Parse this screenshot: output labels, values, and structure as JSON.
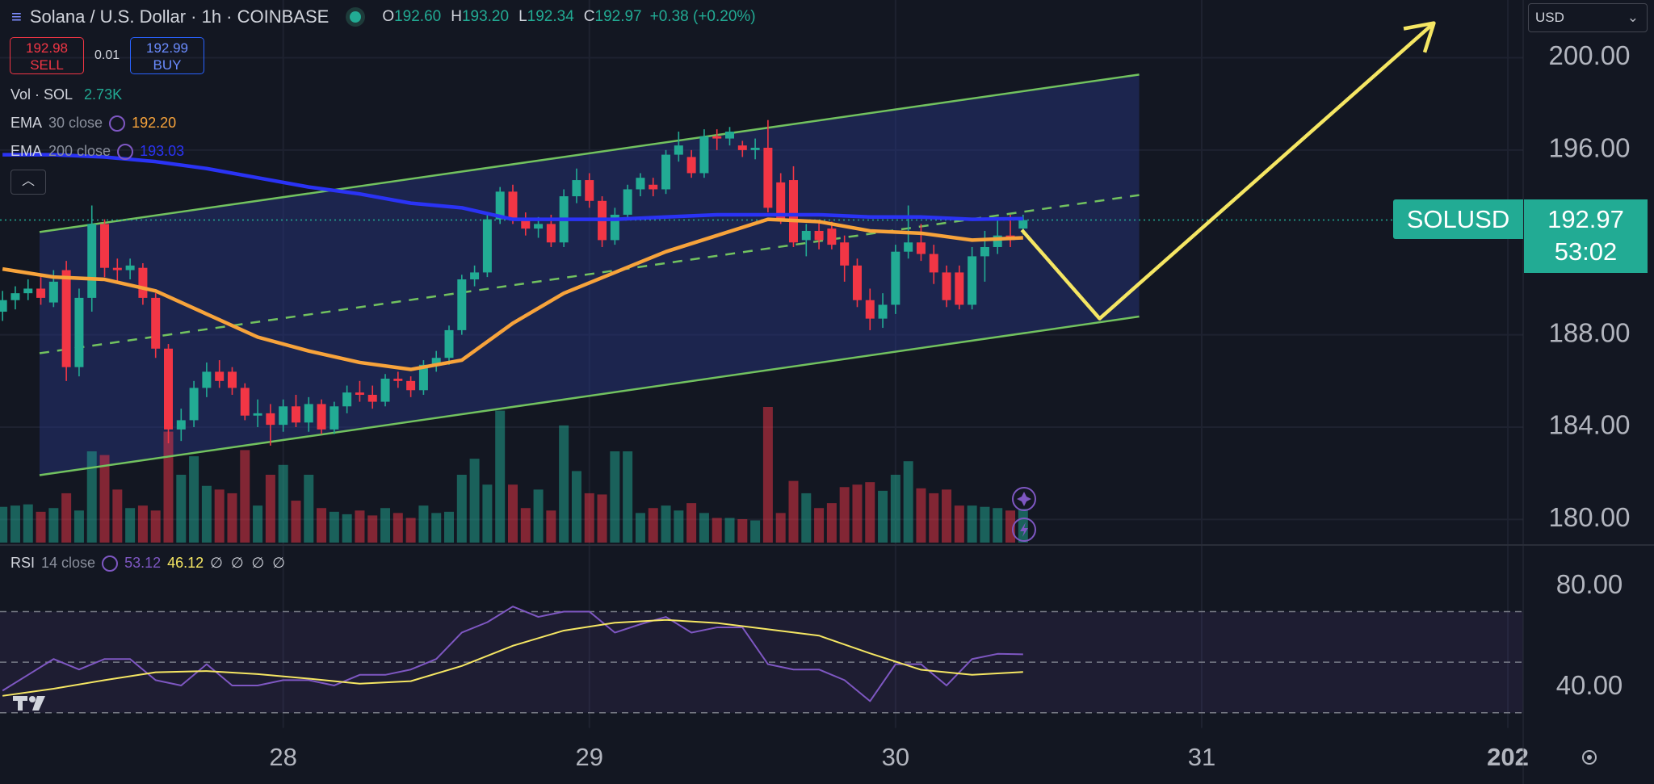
{
  "ui": {
    "header": {
      "title": "Solana / U.S. Dollar · 1h · COINBASE",
      "ohlc": [
        {
          "k": "O",
          "v": "192.60"
        },
        {
          "k": "H",
          "v": "193.20"
        },
        {
          "k": "L",
          "v": "192.34"
        },
        {
          "k": "C",
          "v": "192.97"
        }
      ],
      "change": "+0.38 (+0.20%)"
    },
    "trade": {
      "sell_price": "192.98",
      "sell": "SELL",
      "spread": "0.01",
      "buy_price": "192.99",
      "buy": "BUY"
    },
    "currency": "USD",
    "volume_legend": {
      "name": "Vol · SOL",
      "value": "2.73K"
    },
    "symbol_label": "SOLUSD",
    "countdown": "53:02"
  },
  "chart_data": [
    {
      "type": "candlestick",
      "title": "Solana / U.S. Dollar · 1h · COINBASE",
      "colors": {
        "up": "#22ab94",
        "down": "#f23645"
      },
      "x": [
        -22,
        -21,
        -20,
        -19,
        -18,
        -17,
        -16,
        -15,
        -14,
        -13,
        -12,
        -11,
        -10,
        -9,
        -8,
        -7,
        -6,
        -5,
        -4,
        -3,
        -2,
        -1,
        0,
        1,
        2,
        3,
        4,
        5,
        6,
        7,
        8,
        9,
        10,
        11,
        12,
        13,
        14,
        15,
        16,
        17,
        18,
        19,
        20,
        21,
        22,
        23,
        24,
        25,
        26,
        27,
        28,
        29,
        30,
        31,
        32,
        33,
        34,
        35,
        36,
        37,
        38,
        39,
        40,
        41,
        42,
        43,
        44,
        45,
        46,
        47,
        48,
        49,
        50,
        51,
        52,
        53,
        54,
        55,
        56,
        57,
        58
      ],
      "open": [
        189.0,
        189.5,
        189.8,
        190.0,
        189.4,
        190.8,
        186.6,
        189.6,
        192.8,
        190.9,
        190.8,
        190.9,
        189.6,
        187.4,
        183.9,
        184.3,
        185.7,
        186.4,
        186.4,
        185.7,
        184.5,
        184.6,
        184.1,
        184.9,
        184.2,
        185.0,
        183.9,
        184.9,
        185.5,
        185.4,
        185.1,
        186.1,
        186.0,
        185.6,
        186.7,
        187.0,
        188.2,
        190.4,
        190.7,
        193.0,
        194.2,
        193.0,
        192.6,
        192.8,
        192.0,
        194.0,
        194.7,
        193.8,
        192.1,
        193.2,
        194.3,
        194.5,
        194.3,
        195.8,
        195.7,
        195.0,
        196.6,
        196.5,
        196.2,
        196.0,
        196.1,
        194.6,
        194.7,
        192.1,
        192.5,
        192.6,
        192.0,
        191.0,
        189.5,
        188.7,
        189.3,
        191.6,
        192.0,
        191.5,
        190.7,
        190.7,
        189.3,
        191.4,
        191.8,
        192.3,
        192.6
      ],
      "high": [
        189.9,
        190.1,
        190.4,
        190.5,
        190.8,
        191.2,
        190.0,
        193.6,
        193.0,
        191.3,
        191.3,
        191.1,
        189.8,
        187.6,
        184.8,
        186.0,
        186.8,
        186.9,
        186.6,
        185.9,
        185.2,
        185.0,
        185.2,
        185.4,
        185.3,
        185.2,
        185.1,
        185.8,
        186.0,
        185.8,
        186.3,
        186.4,
        186.2,
        186.9,
        187.3,
        188.4,
        190.6,
        191.0,
        193.2,
        194.4,
        194.5,
        193.3,
        193.1,
        193.2,
        194.3,
        195.2,
        195.0,
        194.0,
        193.5,
        194.5,
        195.0,
        194.8,
        196.0,
        196.8,
        196.0,
        196.9,
        196.9,
        197.0,
        196.4,
        196.5,
        197.3,
        195.0,
        195.3,
        192.8,
        192.9,
        192.9,
        192.3,
        191.3,
        190.0,
        189.8,
        191.9,
        193.6,
        192.8,
        191.9,
        191.0,
        191.0,
        191.8,
        192.5,
        193.0,
        193.2,
        193.2
      ],
      "low": [
        188.6,
        189.1,
        189.5,
        189.3,
        189.2,
        186.0,
        186.2,
        189.0,
        190.5,
        190.3,
        190.4,
        189.3,
        187.0,
        183.3,
        183.4,
        184.0,
        185.3,
        185.7,
        185.4,
        184.3,
        184.0,
        183.2,
        183.8,
        184.0,
        183.8,
        183.7,
        183.7,
        184.6,
        185.1,
        184.8,
        184.9,
        185.7,
        185.3,
        185.4,
        186.4,
        186.7,
        188.0,
        190.1,
        190.5,
        192.8,
        192.8,
        192.3,
        192.2,
        191.8,
        191.8,
        193.7,
        193.5,
        191.8,
        191.9,
        193.0,
        194.0,
        194.0,
        194.1,
        195.5,
        194.8,
        194.8,
        196.0,
        196.2,
        195.7,
        195.6,
        193.3,
        192.8,
        191.8,
        191.4,
        191.7,
        191.7,
        190.3,
        189.2,
        188.2,
        188.3,
        188.9,
        191.3,
        191.2,
        190.2,
        189.2,
        189.1,
        189.1,
        190.3,
        191.5,
        191.8,
        192.34
      ],
      "close": [
        189.5,
        189.8,
        190.0,
        189.6,
        190.3,
        186.6,
        189.6,
        192.8,
        190.9,
        190.8,
        191.0,
        189.6,
        187.4,
        183.9,
        184.3,
        185.7,
        186.4,
        186.0,
        185.7,
        184.5,
        184.6,
        184.1,
        184.9,
        184.2,
        185.0,
        183.9,
        184.9,
        185.5,
        185.4,
        185.1,
        186.1,
        186.0,
        185.6,
        186.7,
        187.0,
        188.2,
        190.4,
        190.7,
        193.0,
        194.2,
        193.0,
        192.6,
        192.8,
        192.0,
        194.0,
        194.7,
        193.8,
        192.1,
        193.2,
        194.3,
        194.8,
        194.3,
        195.8,
        196.2,
        195.0,
        196.6,
        196.5,
        196.8,
        196.0,
        196.1,
        193.5,
        193.0,
        192.0,
        192.5,
        192.1,
        191.9,
        191.0,
        189.5,
        188.7,
        189.3,
        191.6,
        192.0,
        191.5,
        190.7,
        189.5,
        189.3,
        191.4,
        191.8,
        192.3,
        192.1,
        192.97
      ],
      "volume": [
        2.9,
        3.0,
        3.1,
        2.5,
        2.8,
        4.0,
        2.6,
        7.4,
        7.1,
        4.3,
        2.8,
        3.0,
        2.6,
        9.0,
        5.5,
        7.0,
        4.6,
        4.3,
        4.0,
        7.5,
        3.0,
        5.5,
        6.3,
        3.4,
        5.5,
        2.8,
        2.5,
        2.3,
        2.6,
        2.2,
        2.8,
        2.4,
        2.0,
        3.0,
        2.4,
        2.5,
        5.5,
        6.8,
        4.7,
        10.7,
        4.7,
        2.8,
        4.3,
        2.6,
        9.5,
        5.8,
        4.0,
        3.9,
        7.4,
        7.4,
        2.4,
        2.8,
        3.0,
        2.6,
        3.2,
        2.4,
        2.0,
        2.0,
        1.9,
        1.8,
        11.0,
        2.4,
        5.0,
        4.0,
        2.8,
        3.2,
        4.5,
        4.7,
        4.9,
        4.2,
        5.5,
        6.6,
        4.4,
        4.0,
        4.3,
        3.0,
        3.0,
        2.9,
        2.8,
        2.6,
        2.73
      ],
      "volume_ylim": [
        0,
        44
      ],
      "xlim": [
        -22.2,
        97.2
      ],
      "ylim": [
        179,
        202.5
      ],
      "yticks": [
        {
          "value": 200,
          "label": "200.00"
        },
        {
          "value": 196,
          "label": "196.00"
        },
        {
          "value": 188,
          "label": "188.00"
        },
        {
          "value": 184,
          "label": "184.00"
        },
        {
          "value": 180,
          "label": "180.00"
        }
      ],
      "grid": true,
      "overlays": [
        {
          "name": "EMA",
          "params": "30 close",
          "value_label": "192.20",
          "color": "#f7a33b",
          "x": [
            -22,
            -18,
            -14,
            -10,
            -6,
            -2,
            2,
            6,
            10,
            14,
            18,
            22,
            26,
            30,
            34,
            38,
            42,
            46,
            50,
            54,
            58
          ],
          "values": [
            190.85,
            190.5,
            190.4,
            189.9,
            188.9,
            187.9,
            187.3,
            186.8,
            186.5,
            186.9,
            188.5,
            189.8,
            190.7,
            191.6,
            192.3,
            193.0,
            192.9,
            192.5,
            192.4,
            192.1,
            192.2
          ]
        },
        {
          "name": "EMA",
          "params": "200 close",
          "value_label": "193.03",
          "color": "#2a33f5",
          "x": [
            -22,
            -18,
            -14,
            -10,
            -6,
            -2,
            2,
            6,
            10,
            14,
            18,
            22,
            26,
            30,
            34,
            38,
            42,
            46,
            50,
            54,
            58
          ],
          "values": [
            195.8,
            195.8,
            195.7,
            195.5,
            195.2,
            194.8,
            194.4,
            194.1,
            193.7,
            193.5,
            193.0,
            193.0,
            193.0,
            193.1,
            193.2,
            193.2,
            193.2,
            193.1,
            193.1,
            193.0,
            193.03
          ]
        }
      ],
      "channel": {
        "color": "#72c25f",
        "upper": [
          [
            -19.1,
            192.45
          ],
          [
            67.1,
            199.27
          ]
        ],
        "middle": [
          [
            -19.1,
            187.2
          ],
          [
            67.1,
            194.05
          ]
        ],
        "lower": [
          [
            -19.1,
            181.92
          ],
          [
            67.1,
            188.79
          ]
        ]
      },
      "projection": {
        "color": "#f5e663",
        "points": [
          [
            57.9,
            192.54
          ],
          [
            64.0,
            188.7
          ],
          [
            90.2,
            201.5
          ]
        ]
      }
    },
    {
      "type": "line",
      "name": "RSI",
      "params": "14 close",
      "series": [
        {
          "name": "RSI",
          "color": "#7e57c2",
          "value_label": "53.12",
          "x": [
            -22,
            -20,
            -18,
            -16,
            -14,
            -12,
            -10,
            -8,
            -6,
            -4,
            -2,
            0,
            2,
            4,
            6,
            8,
            10,
            12,
            14,
            16,
            18,
            20,
            22,
            24,
            26,
            28,
            30,
            32,
            34,
            36,
            38,
            40,
            42,
            44,
            46,
            48,
            50,
            52,
            54,
            56,
            58
          ],
          "values": [
            38.75,
            45.0,
            51.25,
            47.1,
            51.25,
            51.25,
            42.9,
            40.8,
            49.2,
            40.8,
            40.8,
            42.9,
            42.9,
            40.8,
            45.0,
            45.0,
            47.1,
            51.25,
            61.7,
            65.8,
            72.0,
            67.9,
            70.0,
            70.0,
            61.7,
            65.0,
            67.9,
            61.7,
            63.75,
            63.75,
            49.2,
            47.1,
            47.1,
            42.9,
            34.6,
            49.2,
            49.2,
            40.8,
            51.25,
            53.3,
            53.12
          ]
        },
        {
          "name": "RSI-based MA",
          "color": "#f5e663",
          "value_label": "46.12",
          "x": [
            -22,
            -18,
            -14,
            -10,
            -6,
            -2,
            2,
            6,
            10,
            14,
            18,
            22,
            26,
            30,
            34,
            38,
            42,
            46,
            50,
            54,
            58
          ],
          "values": [
            36.7,
            39.5,
            42.9,
            46.0,
            46.5,
            45.3,
            43.5,
            41.5,
            42.5,
            48.5,
            56.5,
            62.5,
            65.6,
            66.7,
            65.5,
            63.0,
            60.5,
            53.5,
            47.0,
            45.0,
            46.12
          ]
        }
      ],
      "extra_labels": [
        "∅",
        "∅",
        "∅",
        "∅"
      ],
      "levels": [
        70,
        50,
        30
      ],
      "ylim": [
        24,
        96
      ],
      "yticks": [
        {
          "value": 80,
          "label": "80.00"
        },
        {
          "value": 40,
          "label": "40.00"
        }
      ],
      "xlim": [
        -22.2,
        97.2
      ],
      "xticks": [
        {
          "value": 0,
          "label": "28"
        },
        {
          "value": 24,
          "label": "29"
        },
        {
          "value": 48,
          "label": "30"
        },
        {
          "value": 72,
          "label": "31"
        },
        {
          "value": 96,
          "label": "202"
        }
      ]
    }
  ]
}
